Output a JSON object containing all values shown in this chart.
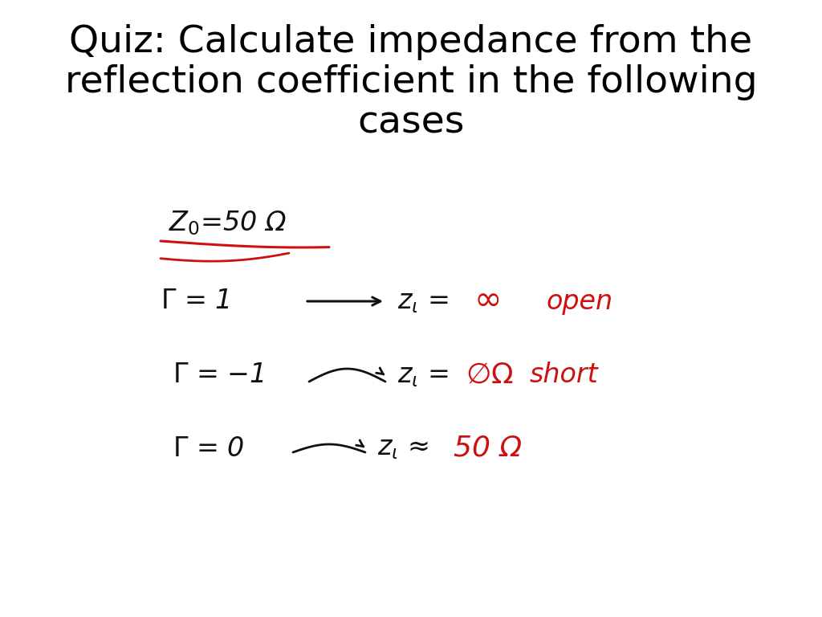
{
  "title_line1": "Quiz: Calculate impedance from the",
  "title_line2": "reflection coefficient in the following",
  "title_line3": "cases",
  "title_fontsize": 34,
  "title_color": "#000000",
  "bg_color": "#ffffff",
  "black_color": "#111111",
  "red_color": "#cc1111",
  "content_fontsize": 22,
  "red_fontsize": 22
}
